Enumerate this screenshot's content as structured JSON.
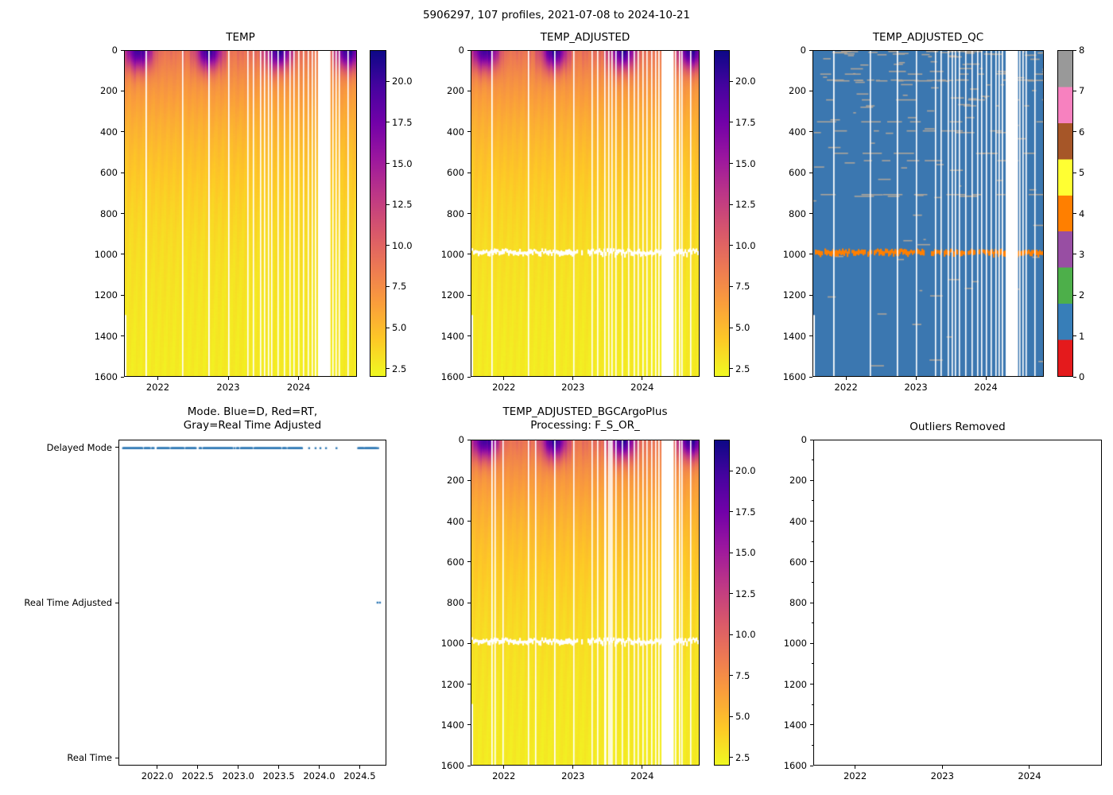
{
  "suptitle": "5906297, 107 profiles, 2021-07-08 to 2024-10-21",
  "chart_data": {
    "type": "heatmap",
    "suptitle": "5906297, 107 profiles, 2021-07-08 to 2024-10-21",
    "n_profiles": 107,
    "date_start": "2021-07-08",
    "date_end": "2024-10-21",
    "x_range": [
      2021.52,
      2024.83
    ],
    "depth_range": [
      0,
      1600
    ],
    "depth_ticks": [
      "0",
      "200",
      "400",
      "600",
      "800",
      "1000",
      "1200",
      "1400",
      "1600"
    ],
    "depth_tick_values": [
      0,
      200,
      400,
      600,
      800,
      1000,
      1200,
      1400,
      1600
    ],
    "year_ticks": [
      "2022",
      "2023",
      "2024"
    ],
    "year_tick_values": [
      2022,
      2023,
      2024
    ],
    "temp_scale": {
      "colormap": "plasma_r",
      "vmin": 2.0,
      "vmax": 21.9,
      "colorbar_ticks": [
        "2.5",
        "5.0",
        "7.5",
        "10.0",
        "12.5",
        "15.0",
        "17.5",
        "20.0"
      ],
      "colorbar_tick_values": [
        2.5,
        5.0,
        7.5,
        10.0,
        12.5,
        15.0,
        17.5,
        20.0
      ],
      "plasma_stops": [
        "#0d0887",
        "#46039f",
        "#7201a8",
        "#9c179e",
        "#bd3786",
        "#d8576b",
        "#ed7953",
        "#fa9e3b",
        "#fdc926",
        "#f0f921"
      ]
    },
    "temp_model": {
      "deep_base_c": 2.35,
      "deep_amp_c": 6.6,
      "deep_efold_m": 500,
      "seasonal_amp_c": 11.5,
      "seasonal_peak_yearfrac": 0.72,
      "seasonal_sigma": 0.13,
      "mixed_layer_scale_m": 330
    },
    "gaps_main": [
      [
        0.088,
        0.006
      ],
      [
        0.247,
        0.004
      ],
      [
        0.362,
        0.006
      ],
      [
        0.447,
        0.004
      ],
      [
        0.528,
        0.004
      ],
      [
        0.553,
        0.005
      ],
      [
        0.585,
        0.004
      ],
      [
        0.602,
        0.005
      ],
      [
        0.617,
        0.004
      ],
      [
        0.633,
        0.005
      ],
      [
        0.66,
        0.004
      ],
      [
        0.688,
        0.005
      ],
      [
        0.713,
        0.004
      ],
      [
        0.73,
        0.004
      ],
      [
        0.75,
        0.005
      ],
      [
        0.77,
        0.004
      ],
      [
        0.791,
        0.005
      ],
      [
        0.806,
        0.005
      ],
      [
        0.82,
        0.006
      ],
      [
        0.836,
        0.054
      ],
      [
        0.896,
        0.005
      ],
      [
        0.911,
        0.004
      ],
      [
        0.924,
        0.004
      ],
      [
        0.962,
        0.005
      ]
    ],
    "gaps_extra_bgc": [
      [
        0.1,
        0.004
      ],
      [
        0.135,
        0.005
      ],
      [
        0.28,
        0.004
      ],
      [
        0.587,
        0.004
      ],
      [
        0.61,
        0.004
      ]
    ],
    "first_profile_max_depth_m": 1300,
    "masked_row": {
      "depth_m": 985,
      "break_frac": [
        0.468,
        0.508
      ]
    },
    "qc": {
      "background_flag": 1,
      "flag_colors": [
        "#e41a1c",
        "#377eb8",
        "#4daf4a",
        "#984ea3",
        "#ff7f00",
        "#ffff33",
        "#a65628",
        "#f781bf",
        "#999999"
      ],
      "colorbar_ticks": [
        "0",
        "1",
        "2",
        "3",
        "4",
        "5",
        "6",
        "7",
        "8"
      ],
      "colorbar_tick_values": [
        0,
        1,
        2,
        3,
        4,
        5,
        6,
        7,
        8
      ],
      "bad_band": {
        "flag": 4,
        "depth_m": 988,
        "color": "#ff7f00"
      },
      "scatter_flag_color_rendered": "#aba49b",
      "background_color_rendered": "#3b77b0"
    },
    "panels": [
      {
        "id": "temp",
        "title": "TEMP"
      },
      {
        "id": "temp_adjusted",
        "title": "TEMP_ADJUSTED"
      },
      {
        "id": "temp_adjusted_qc",
        "title": "TEMP_ADJUSTED_QC"
      },
      {
        "id": "mode",
        "title_line1": "Mode. Blue=D, Red=RT,",
        "title_line2": "Gray=Real Time Adjusted",
        "categories": [
          "Delayed Mode",
          "Real Time Adjusted",
          "Real Time"
        ],
        "x_ticks": [
          "2022.0",
          "2022.5",
          "2023.0",
          "2023.5",
          "2024.0",
          "2024.5"
        ],
        "x_tick_values": [
          2022.0,
          2022.5,
          2023.0,
          2023.5,
          2024.0,
          2024.5
        ],
        "dot_color": "#3079b5",
        "delayed_mode": {
          "dense_span": [
            2021.53,
            2023.8
          ],
          "dense_step": 0.0095,
          "sparse": [
            2023.88,
            2023.96,
            2024.02,
            2024.09,
            2024.22
          ],
          "cluster_span": [
            2024.49,
            2024.74
          ],
          "cluster_step": 0.0095
        },
        "real_time_adjusted_points": [
          2024.73,
          2024.76
        ],
        "real_time_points": []
      },
      {
        "id": "bgc",
        "title_line1": "TEMP_ADJUSTED_BGCArgoPlus",
        "title_line2": "Processing: F_S_OR_"
      },
      {
        "id": "outliers",
        "title": "Outliers Removed",
        "empty": true
      }
    ]
  }
}
